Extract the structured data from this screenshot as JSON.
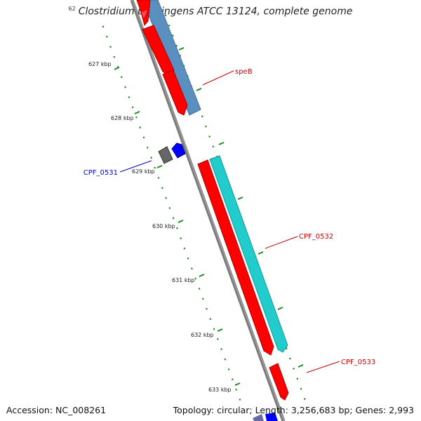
{
  "title": "Clostridium perfringens ATCC 13124, complete genome",
  "title_clip": "62",
  "footer": {
    "accession": "Accession: NC_008261",
    "summary": "Topology: circular; Length: 3,256,683 bp; Genes: 2,993"
  },
  "ruler": {
    "labels": [
      "627 kbp",
      "628 kbp",
      "629 kbp",
      "630 kbp",
      "631 kbp",
      "632 kbp",
      "633 kbp"
    ]
  },
  "genes": [
    {
      "name": "speB",
      "color": "#cc0000"
    },
    {
      "name": "CPF_0531",
      "color": "#0000cc"
    },
    {
      "name": "CPF_0532",
      "color": "#cc0000"
    },
    {
      "name": "CPF_0533",
      "color": "#cc0000"
    }
  ],
  "colors": {
    "backbone": "#7a7a7a",
    "cds": "#ff0000",
    "gene_steelblue": "#5b8fc0",
    "gene_cyan": "#22cccc",
    "ticks": "#1e8a1e",
    "gray_feature": "#666666",
    "blue_feature": "#0000ff"
  }
}
